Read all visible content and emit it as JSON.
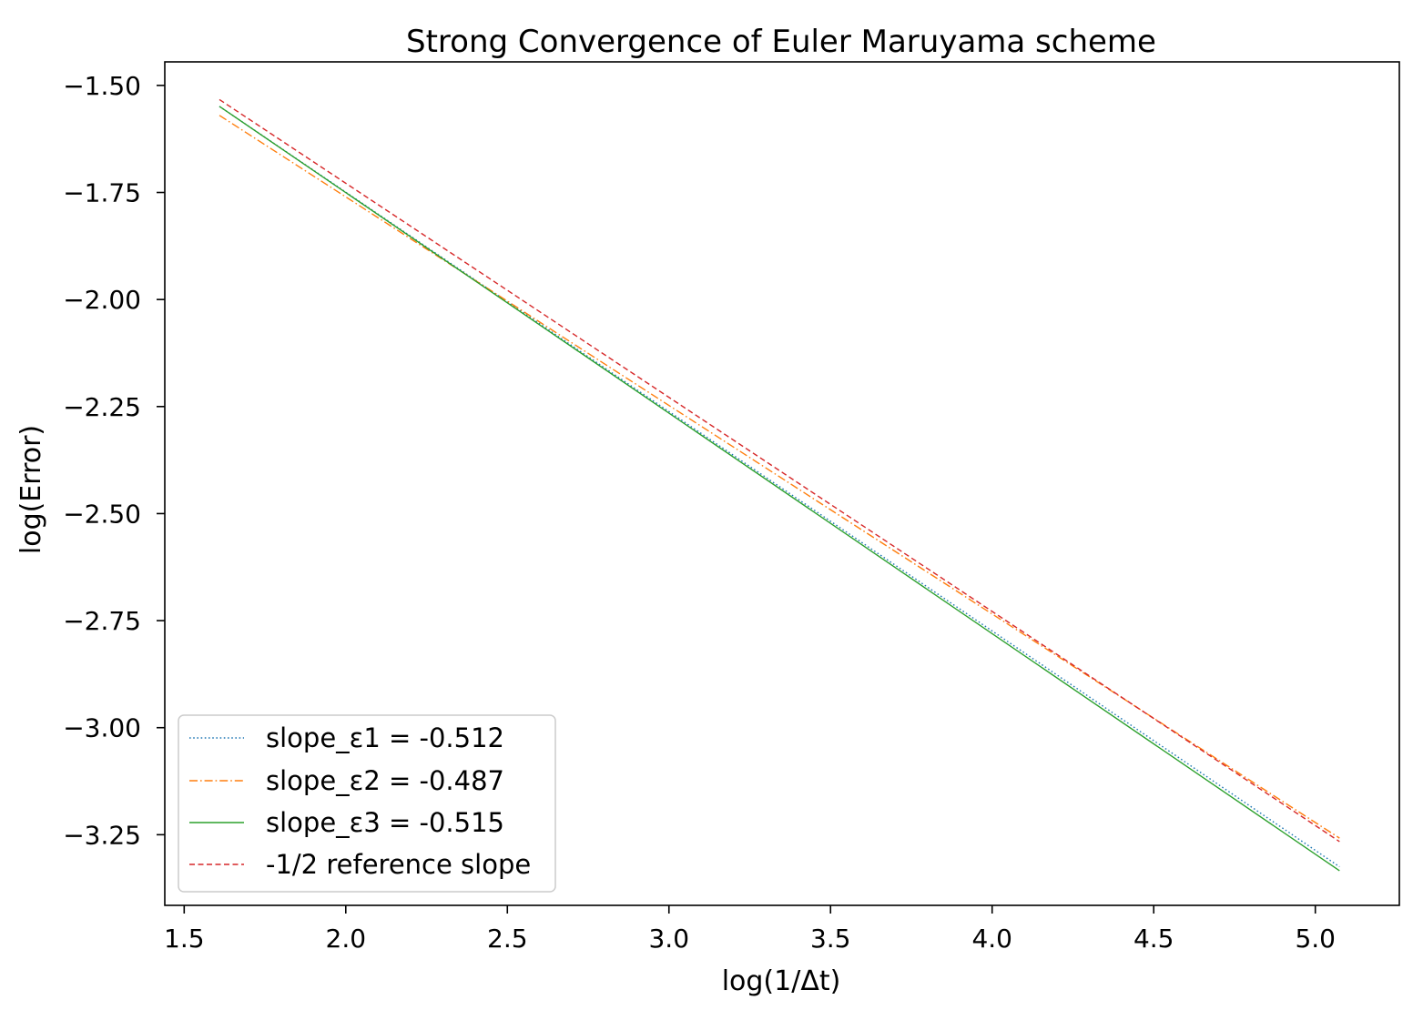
{
  "chart_data": {
    "type": "line",
    "title": "Strong Convergence of Euler Maruyama scheme",
    "xlabel": "log(1/Δt)",
    "ylabel": "log(Error)",
    "xlim": [
      1.44,
      5.26
    ],
    "ylim": [
      -3.415,
      -1.445
    ],
    "xticks": [
      1.5,
      2.0,
      2.5,
      3.0,
      3.5,
      4.0,
      4.5,
      5.0
    ],
    "xtick_labels": [
      "1.5",
      "2.0",
      "2.5",
      "3.0",
      "3.5",
      "4.0",
      "4.5",
      "5.0"
    ],
    "yticks": [
      -1.5,
      -1.75,
      -2.0,
      -2.25,
      -2.5,
      -2.75,
      -3.0,
      -3.25
    ],
    "ytick_labels": [
      "−1.50",
      "−1.75",
      "−2.00",
      "−2.25",
      "−2.50",
      "−2.75",
      "−3.00",
      "−3.25"
    ],
    "grid": false,
    "legend_position": "lower-left",
    "series": [
      {
        "name": "slope_ε1 = -0.512",
        "color": "#1f77b4",
        "style": "dotted",
        "x": [
          1.609,
          5.075
        ],
        "y": [
          -1.549,
          -3.325
        ]
      },
      {
        "name": "slope_ε2 = -0.487",
        "color": "#ff7f0e",
        "style": "dashdot",
        "x": [
          1.609,
          5.075
        ],
        "y": [
          -1.57,
          -3.258
        ]
      },
      {
        "name": "slope_ε3 = -0.515",
        "color": "#2ca02c",
        "style": "solid",
        "x": [
          1.609,
          5.075
        ],
        "y": [
          -1.549,
          -3.334
        ]
      },
      {
        "name": "-1/2 reference slope",
        "color": "#d62728",
        "style": "dashed",
        "x": [
          1.609,
          5.075
        ],
        "y": [
          -1.533,
          -3.266
        ]
      }
    ]
  }
}
